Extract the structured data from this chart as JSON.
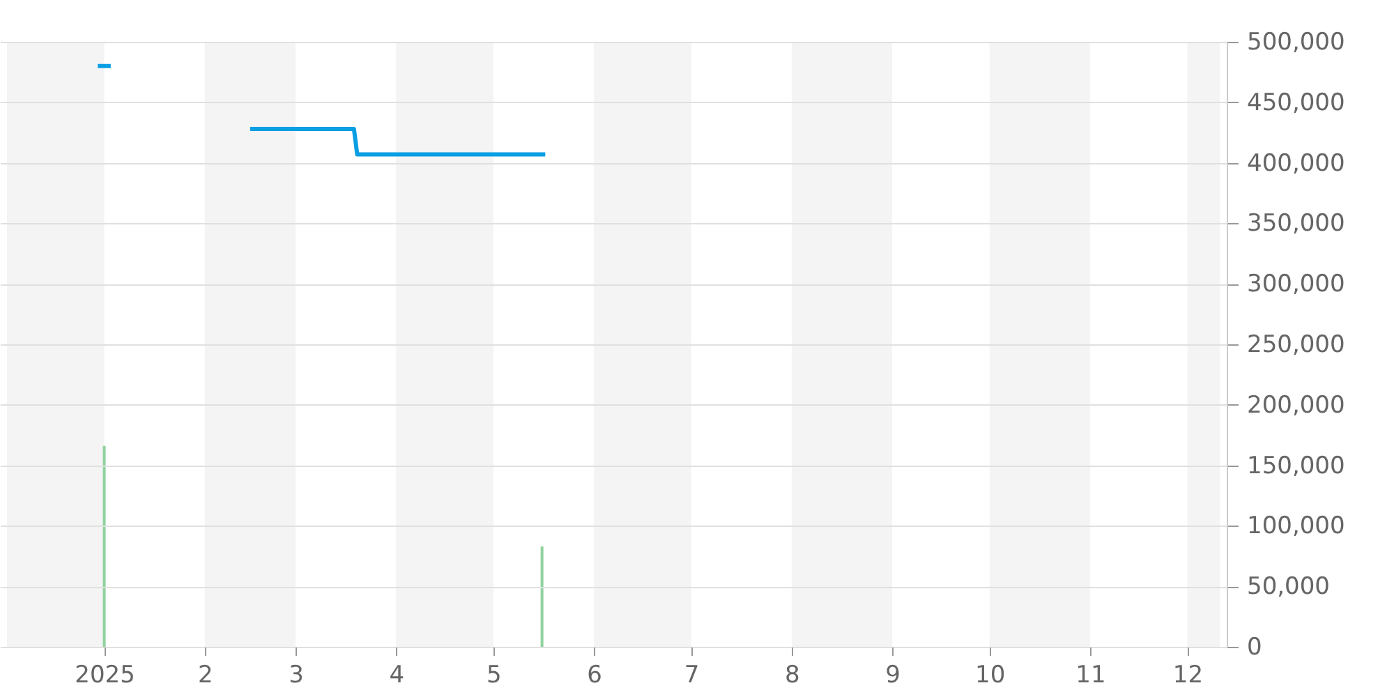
{
  "chart_data": {
    "type": "line",
    "xlim": [
      "2024-12-02",
      "2025-12-11"
    ],
    "ylim": [
      0,
      500000
    ],
    "xticks": [
      {
        "value": "2025-01-01",
        "label": "2025"
      },
      {
        "value": "2025-02-01",
        "label": "2"
      },
      {
        "value": "2025-03-01",
        "label": "3"
      },
      {
        "value": "2025-04-01",
        "label": "4"
      },
      {
        "value": "2025-05-01",
        "label": "5"
      },
      {
        "value": "2025-06-01",
        "label": "6"
      },
      {
        "value": "2025-07-01",
        "label": "7"
      },
      {
        "value": "2025-08-01",
        "label": "8"
      },
      {
        "value": "2025-09-01",
        "label": "9"
      },
      {
        "value": "2025-10-01",
        "label": "10"
      },
      {
        "value": "2025-11-01",
        "label": "11"
      },
      {
        "value": "2025-12-01",
        "label": "12"
      }
    ],
    "yticks": [
      {
        "value": 0,
        "label": "0"
      },
      {
        "value": 50000,
        "label": "50,000"
      },
      {
        "value": 100000,
        "label": "100,000"
      },
      {
        "value": 150000,
        "label": "150,000"
      },
      {
        "value": 200000,
        "label": "200,000"
      },
      {
        "value": 250000,
        "label": "250,000"
      },
      {
        "value": 300000,
        "label": "300,000"
      },
      {
        "value": 350000,
        "label": "350,000"
      },
      {
        "value": 400000,
        "label": "400,000"
      },
      {
        "value": 450000,
        "label": "450,000"
      },
      {
        "value": 500000,
        "label": "500,000"
      }
    ],
    "grid": "y",
    "line_style": "solid",
    "marker": "none",
    "series": [
      {
        "color": "#0a9ee3",
        "x": [
          "2024-12-30",
          "2025-01-03",
          "2025-01-20",
          "2025-02-15",
          "2025-03-19",
          "2025-03-20",
          "2025-05-17"
        ],
        "values": [
          480000,
          480000,
          null,
          428000,
          428000,
          407000,
          407000
        ]
      },
      {
        "type": "bar",
        "color": "#8fd19e",
        "x": [
          "2025-01-01",
          "2025-05-16"
        ],
        "values": [
          166000,
          83000
        ]
      }
    ],
    "bands": [
      {
        "axis": "x",
        "from": "2024-12-02",
        "to": "2025-01-01",
        "color": "#f4f4f4"
      },
      {
        "axis": "x",
        "from": "2025-02-01",
        "to": "2025-03-01",
        "color": "#f4f4f4"
      },
      {
        "axis": "x",
        "from": "2025-04-01",
        "to": "2025-05-01",
        "color": "#f4f4f4"
      },
      {
        "axis": "x",
        "from": "2025-06-01",
        "to": "2025-07-01",
        "color": "#f4f4f4"
      },
      {
        "axis": "x",
        "from": "2025-08-01",
        "to": "2025-09-01",
        "color": "#f4f4f4"
      },
      {
        "axis": "x",
        "from": "2025-10-01",
        "to": "2025-11-01",
        "color": "#f4f4f4"
      },
      {
        "axis": "x",
        "from": "2025-12-01",
        "to": "2025-12-11",
        "color": "#f4f4f4"
      }
    ]
  }
}
